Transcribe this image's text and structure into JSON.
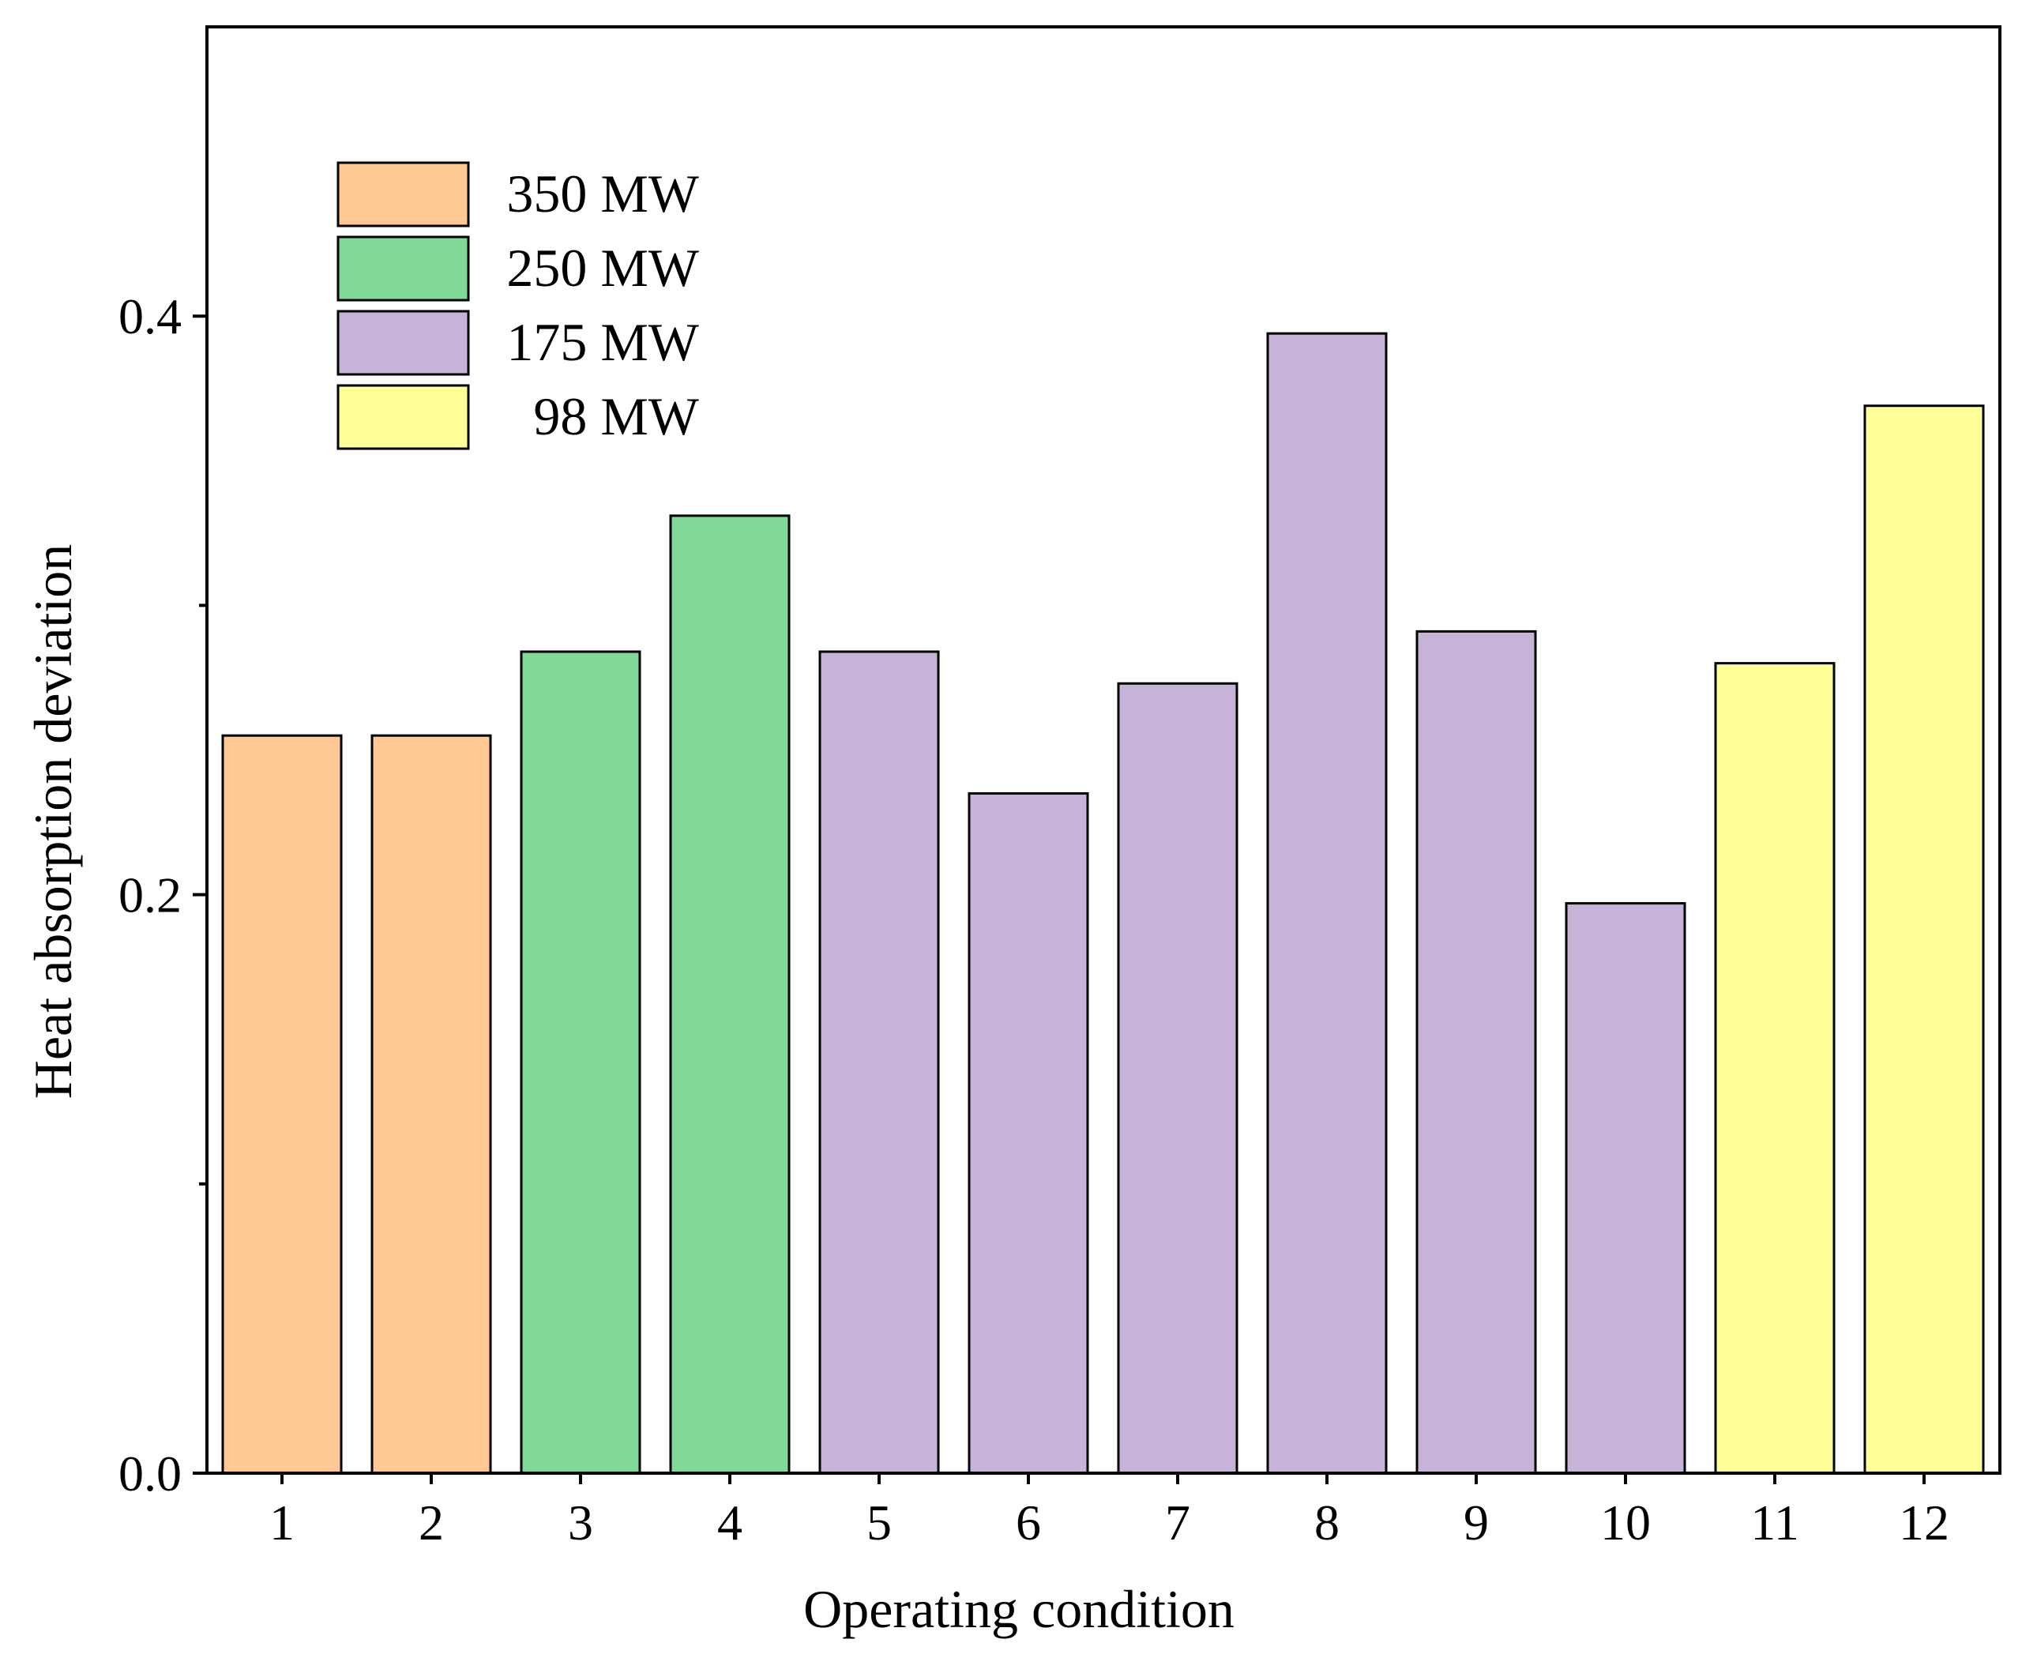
{
  "chart_data": {
    "type": "bar",
    "title": "",
    "xlabel": "Operating condition",
    "ylabel": "Heat absorption deviation",
    "ylim": [
      0,
      0.5
    ],
    "yticks_major": [
      0.0,
      0.2,
      0.4
    ],
    "ytick_labels": [
      "0.0",
      "0.2",
      "0.4"
    ],
    "yticks_minor": [
      0.1,
      0.3
    ],
    "grid": false,
    "legend_position": "top-left",
    "categories": [
      "1",
      "2",
      "3",
      "4",
      "5",
      "6",
      "7",
      "8",
      "9",
      "10",
      "11",
      "12"
    ],
    "values": [
      0.255,
      0.255,
      0.284,
      0.331,
      0.284,
      0.235,
      0.273,
      0.394,
      0.291,
      0.197,
      0.28,
      0.369
    ],
    "bar_groups": [
      "350 MW",
      "350 MW",
      "250 MW",
      "250 MW",
      "175 MW",
      "175 MW",
      "175 MW",
      "175 MW",
      "175 MW",
      "175 MW",
      "98 MW",
      "98 MW"
    ],
    "legend": [
      {
        "label": "350 MW",
        "color": "#FFC894"
      },
      {
        "label": "250 MW",
        "color": "#80D899"
      },
      {
        "label": "175 MW",
        "color": "#C8B3D8"
      },
      {
        "label": "98 MW",
        "color": "#FFFF99"
      }
    ]
  }
}
